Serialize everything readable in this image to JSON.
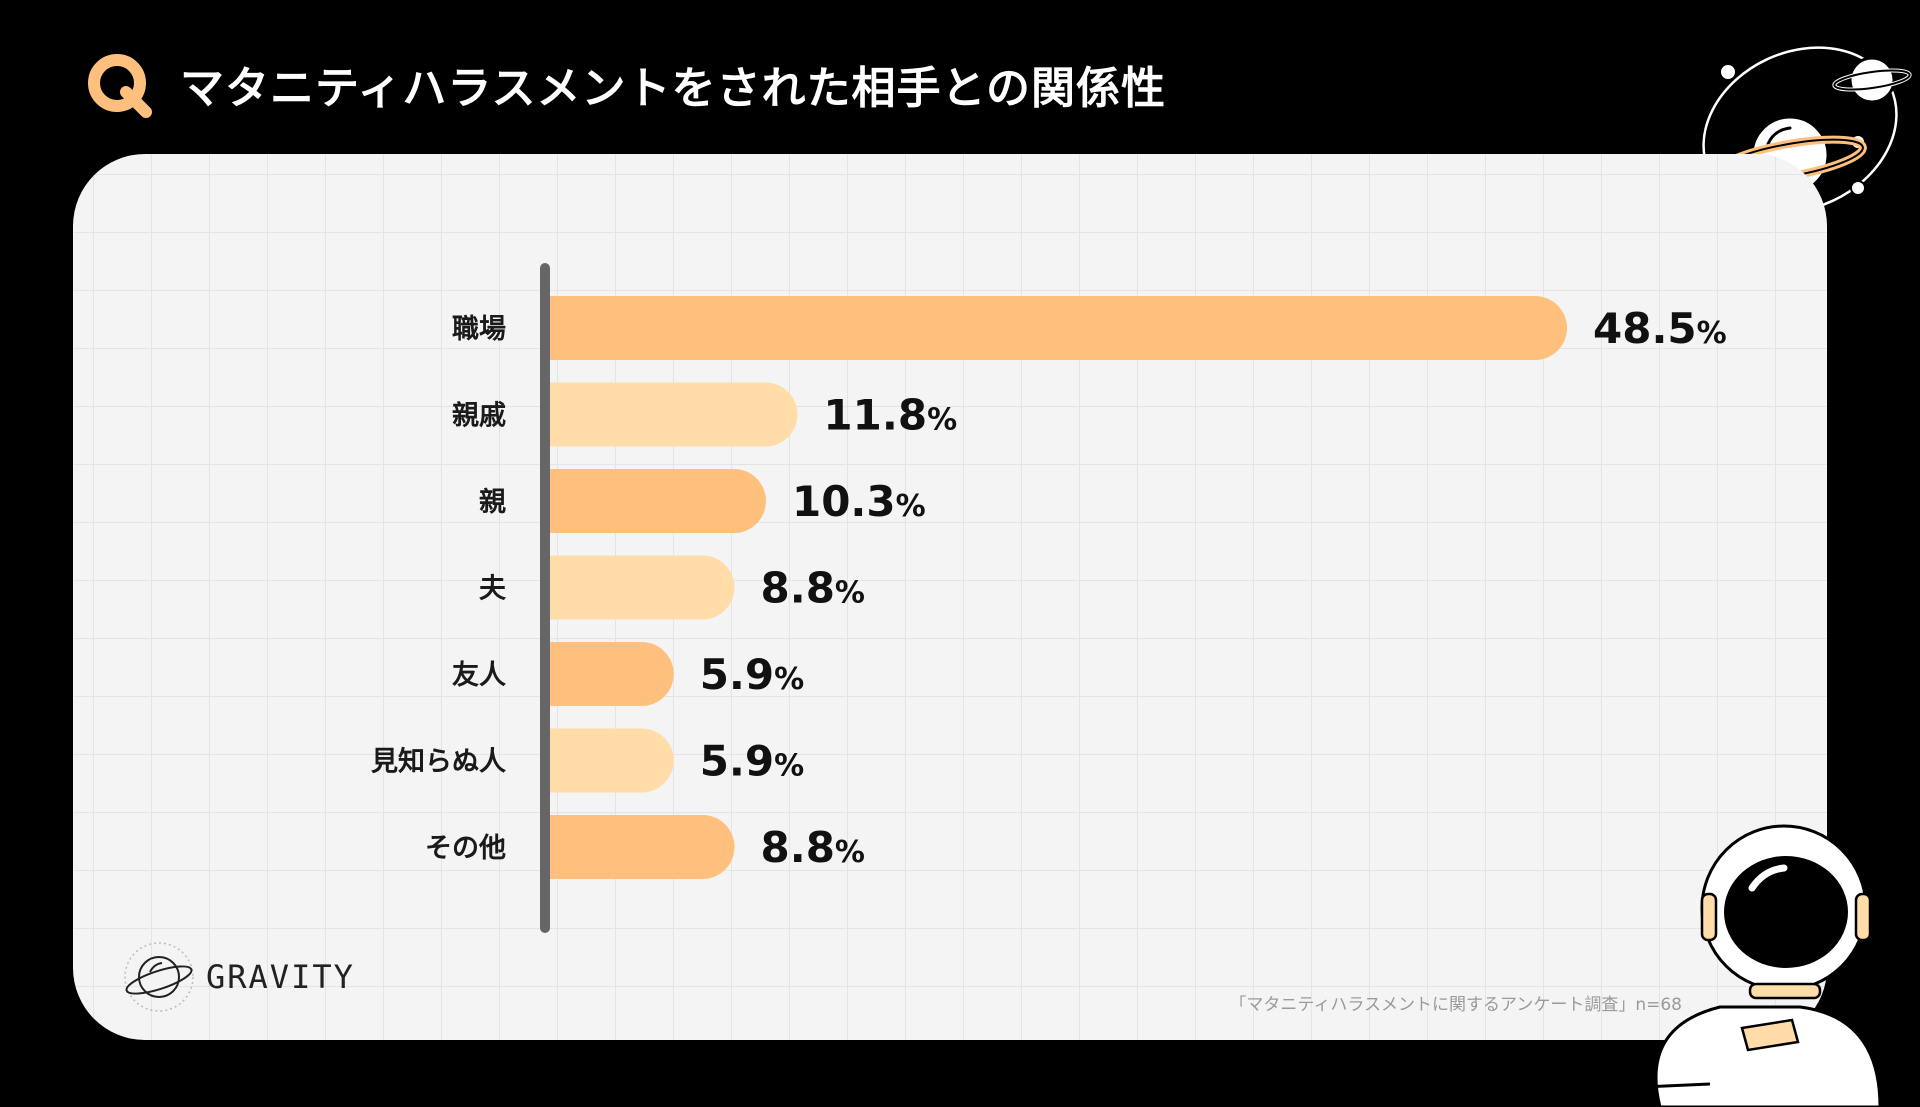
{
  "header": {
    "q_label": "Q",
    "title": "マタニティハラスメントをされた相手との関係性"
  },
  "brand": {
    "name": "GRAVITY"
  },
  "source_note": "「マタニティハラスメントに関するアンケート調査」n=68",
  "colors": {
    "bar_dark": "#FFC07E",
    "bar_light": "#FFDCA8",
    "q_badge": "#FFC07E",
    "axis": "#666666"
  },
  "chart_data": {
    "type": "bar",
    "orientation": "horizontal",
    "title": "マタニティハラスメントをされた相手との関係性",
    "categories": [
      "職場",
      "親戚",
      "親",
      "夫",
      "友人",
      "見知らぬ人",
      "その他"
    ],
    "values": [
      48.5,
      11.8,
      10.3,
      8.8,
      5.9,
      5.9,
      8.8
    ],
    "value_labels": [
      "48.5",
      "11.8",
      "10.3",
      "8.8",
      "5.9",
      "5.9",
      "8.8"
    ],
    "unit": "%",
    "xlim": [
      0,
      50
    ],
    "xlabel": "",
    "ylabel": "",
    "grid": false,
    "legend": "none"
  }
}
